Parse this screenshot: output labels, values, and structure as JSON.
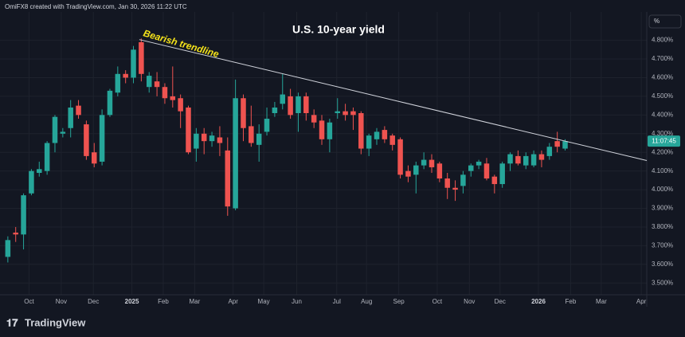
{
  "header": "OmiFX8 created with TradingView.com, Jan 30, 2026 11:22 UTC",
  "footer_logo": "TradingView",
  "chart_data": {
    "type": "candlestick",
    "title": "U.S. 10-year yield",
    "annotation": "Bearish trendline",
    "unit_label": "%",
    "countdown": "11:07:45",
    "up_color": "#26a69a",
    "down_color": "#ef5350",
    "trendline": {
      "color": "#d1d4dc",
      "x": [
        16.75,
        81.4
      ],
      "y": [
        4.804,
        4.156
      ]
    },
    "open": [
      3.64,
      3.77,
      3.76,
      3.98,
      4.09,
      4.1,
      4.25,
      4.3,
      4.33,
      4.45,
      4.35,
      4.2,
      4.15,
      4.4,
      4.52,
      4.62,
      4.6,
      4.79,
      4.55,
      4.58,
      4.55,
      4.5,
      4.49,
      4.44,
      4.22,
      4.3,
      4.26,
      4.28,
      4.21,
      3.9,
      4.49,
      4.34,
      4.24,
      4.31,
      4.41,
      4.46,
      4.5,
      4.41,
      4.5,
      4.4,
      4.37,
      4.27,
      4.41,
      4.42,
      4.42,
      4.41,
      4.22,
      4.27,
      4.32,
      4.29,
      4.27,
      4.1,
      4.08,
      4.13,
      4.16,
      4.14,
      4.06,
      4.01,
      4.02,
      4.1,
      4.13,
      4.14,
      4.07,
      4.03,
      4.14,
      4.18,
      4.13,
      4.13,
      4.19,
      4.18,
      4.26,
      4.22
    ],
    "high": [
      3.75,
      3.8,
      3.98,
      4.11,
      4.15,
      4.26,
      4.4,
      4.33,
      4.48,
      4.48,
      4.37,
      4.25,
      4.43,
      4.54,
      4.66,
      4.64,
      4.77,
      4.81,
      4.63,
      4.63,
      4.57,
      4.66,
      4.51,
      4.45,
      4.33,
      4.33,
      4.31,
      4.34,
      4.28,
      4.59,
      4.51,
      4.45,
      4.35,
      4.44,
      4.47,
      4.62,
      4.54,
      4.52,
      4.52,
      4.43,
      4.4,
      4.38,
      4.49,
      4.46,
      4.44,
      4.42,
      4.3,
      4.33,
      4.34,
      4.3,
      4.28,
      4.13,
      4.15,
      4.2,
      4.19,
      4.15,
      4.09,
      4.05,
      4.1,
      4.14,
      4.16,
      4.17,
      4.08,
      4.15,
      4.2,
      4.21,
      4.2,
      4.21,
      4.21,
      4.25,
      4.31,
      4.27
    ],
    "low": [
      3.61,
      3.72,
      3.68,
      3.97,
      4.07,
      4.08,
      4.2,
      4.28,
      4.28,
      4.38,
      4.16,
      4.12,
      4.13,
      4.39,
      4.5,
      4.57,
      4.57,
      4.58,
      4.52,
      4.5,
      4.46,
      4.44,
      4.33,
      4.19,
      4.15,
      4.19,
      4.23,
      4.18,
      3.86,
      3.89,
      4.26,
      4.23,
      4.15,
      4.29,
      4.39,
      4.43,
      4.38,
      4.31,
      4.37,
      4.33,
      4.24,
      4.2,
      4.38,
      4.37,
      4.32,
      4.19,
      4.18,
      4.24,
      4.25,
      4.21,
      4.06,
      4.04,
      3.98,
      4.11,
      4.09,
      4.04,
      3.95,
      3.94,
      3.98,
      4.07,
      4.11,
      4.05,
      3.98,
      4.01,
      4.1,
      4.13,
      4.11,
      4.12,
      4.12,
      4.16,
      4.2,
      4.21
    ],
    "close": [
      3.73,
      3.76,
      3.97,
      4.1,
      4.11,
      4.25,
      4.39,
      4.31,
      4.44,
      4.4,
      4.18,
      4.14,
      4.4,
      4.53,
      4.62,
      4.6,
      4.75,
      4.62,
      4.61,
      4.55,
      4.49,
      4.48,
      4.42,
      4.2,
      4.3,
      4.26,
      4.29,
      4.25,
      3.91,
      4.49,
      4.33,
      4.25,
      4.3,
      4.38,
      4.44,
      4.51,
      4.4,
      4.5,
      4.41,
      4.36,
      4.27,
      4.36,
      4.42,
      4.4,
      4.4,
      4.22,
      4.29,
      4.31,
      4.27,
      4.24,
      4.08,
      4.07,
      4.13,
      4.16,
      4.12,
      4.06,
      4.01,
      4.0,
      4.08,
      4.13,
      4.15,
      4.06,
      4.03,
      4.14,
      4.19,
      4.14,
      4.18,
      4.19,
      4.16,
      4.23,
      4.23,
      4.26
    ],
    "xlim": [
      -1,
      81.4
    ],
    "xticks": [
      {
        "value": 2.7,
        "label": "Oct"
      },
      {
        "value": 6.8,
        "label": "Nov"
      },
      {
        "value": 10.9,
        "label": "Dec"
      },
      {
        "value": 15.8,
        "label": "2025"
      },
      {
        "value": 19.8,
        "label": "Feb"
      },
      {
        "value": 23.8,
        "label": "Mar"
      },
      {
        "value": 28.7,
        "label": "Apr"
      },
      {
        "value": 32.6,
        "label": "May"
      },
      {
        "value": 36.8,
        "label": "Jun"
      },
      {
        "value": 41.9,
        "label": "Jul"
      },
      {
        "value": 45.7,
        "label": "Aug"
      },
      {
        "value": 49.8,
        "label": "Sep"
      },
      {
        "value": 54.7,
        "label": "Oct"
      },
      {
        "value": 58.8,
        "label": "Nov"
      },
      {
        "value": 62.7,
        "label": "Dec"
      },
      {
        "value": 67.6,
        "label": "2026"
      },
      {
        "value": 71.7,
        "label": "Feb"
      },
      {
        "value": 75.6,
        "label": "Mar"
      },
      {
        "value": 80.7,
        "label": "Apr"
      }
    ],
    "ylim": [
      3.437,
      4.952
    ],
    "yticks": [
      {
        "value": 3.5,
        "label": "3.500%"
      },
      {
        "value": 3.6,
        "label": "3.600%"
      },
      {
        "value": 3.7,
        "label": "3.700%"
      },
      {
        "value": 3.8,
        "label": "3.800%"
      },
      {
        "value": 3.9,
        "label": "3.900%"
      },
      {
        "value": 4.0,
        "label": "4.000%"
      },
      {
        "value": 4.1,
        "label": "4.100%"
      },
      {
        "value": 4.2,
        "label": "4.200%"
      },
      {
        "value": 4.3,
        "label": "4.300%"
      },
      {
        "value": 4.4,
        "label": "4.400%"
      },
      {
        "value": 4.5,
        "label": "4.500%"
      },
      {
        "value": 4.6,
        "label": "4.600%"
      },
      {
        "value": 4.7,
        "label": "4.700%"
      },
      {
        "value": 4.8,
        "label": "4.800%"
      }
    ],
    "grid": true
  }
}
